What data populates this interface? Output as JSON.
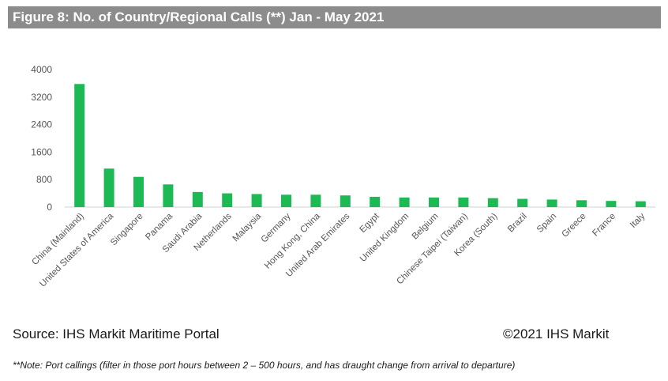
{
  "title": "Figure 8: No. of Country/Regional Calls (**) Jan - May 2021",
  "source": "Source: IHS Markit Maritime Portal",
  "copyright": "©2021 IHS Markit",
  "note": "**Note: Port callings (filter in those port hours between 2 – 500 hours, and has draught change from arrival to departure)",
  "chart_data": {
    "type": "bar",
    "title": "Figure 8: No. of Country/Regional Calls (**) Jan - May 2021",
    "categories": [
      "China (Mainland)",
      "United States of America",
      "Singapore",
      "Panama",
      "Saudi Arabia",
      "Netherlands",
      "Malaysia",
      "Germany",
      "Hong Kong, China",
      "United Arab Emirates",
      "Egypt",
      "United Kingdom",
      "Belgium",
      "Chinese Taipei (Taiwan)",
      "Korea (South)",
      "Brazil",
      "Spain",
      "Greece",
      "France",
      "Italy"
    ],
    "values": [
      3580,
      1120,
      880,
      660,
      440,
      400,
      380,
      360,
      360,
      340,
      300,
      280,
      280,
      280,
      260,
      240,
      220,
      200,
      180,
      170
    ],
    "yticks": [
      0,
      800,
      1600,
      2400,
      3200,
      4000
    ],
    "ylim": [
      0,
      4000
    ],
    "grid": false,
    "legend": "none",
    "bar_color": "#1db954"
  }
}
